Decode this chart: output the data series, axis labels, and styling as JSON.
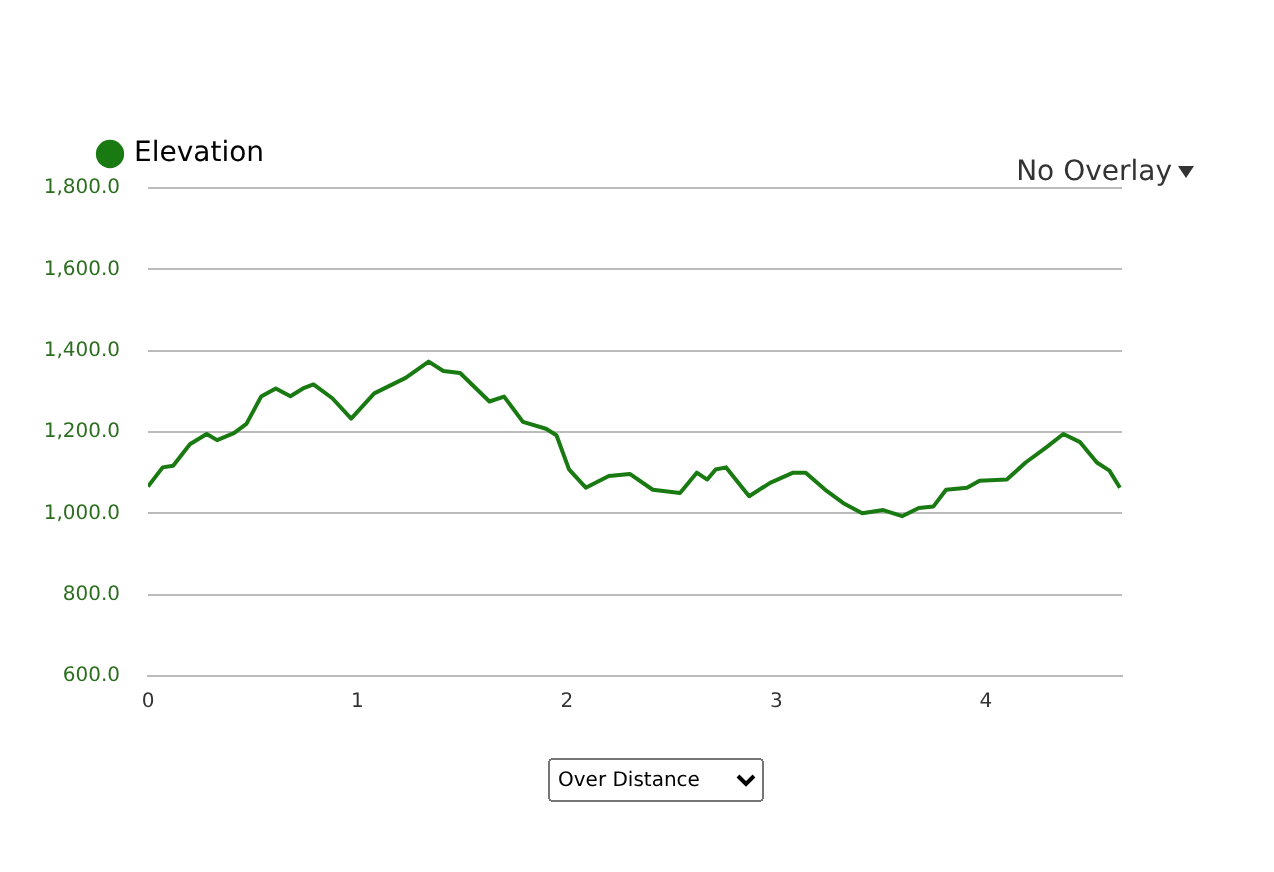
{
  "chart_data": {
    "type": "line",
    "annotations": [
      "No Overlay",
      "Over Distance"
    ],
    "x": [
      0,
      0.07,
      0.12,
      0.2,
      0.28,
      0.33,
      0.41,
      0.47,
      0.54,
      0.61,
      0.68,
      0.74,
      0.79,
      0.88,
      0.97,
      1.08,
      1.23,
      1.34,
      1.41,
      1.49,
      1.63,
      1.7,
      1.79,
      1.9,
      1.95,
      2.01,
      2.09,
      2.2,
      2.3,
      2.41,
      2.54,
      2.62,
      2.67,
      2.71,
      2.76,
      2.87,
      2.97,
      3.08,
      3.14,
      3.24,
      3.32,
      3.41,
      3.51,
      3.6,
      3.68,
      3.75,
      3.81,
      3.91,
      3.97,
      4.1,
      4.19,
      4.29,
      4.37,
      4.45,
      4.53,
      4.59,
      4.64
    ],
    "series": [
      {
        "name": "Elevation",
        "color": "#1a7a12",
        "values": [
          1066,
          1113,
          1117,
          1170,
          1195,
          1180,
          1197,
          1220,
          1287,
          1307,
          1288,
          1307,
          1317,
          1283,
          1233,
          1295,
          1333,
          1373,
          1350,
          1345,
          1275,
          1287,
          1225,
          1208,
          1192,
          1108,
          1063,
          1092,
          1097,
          1058,
          1050,
          1100,
          1083,
          1108,
          1113,
          1042,
          1075,
          1100,
          1100,
          1055,
          1025,
          1000,
          1008,
          993,
          1013,
          1017,
          1058,
          1063,
          1080,
          1083,
          1125,
          1163,
          1195,
          1175,
          1125,
          1105,
          1063
        ]
      }
    ],
    "xlim": [
      0,
      4.65
    ],
    "xticks": [
      0,
      1,
      2,
      3,
      4
    ],
    "ylim": [
      600,
      1800
    ],
    "yticks": [
      {
        "value": 600,
        "label": "600.0"
      },
      {
        "value": 800,
        "label": "800.0"
      },
      {
        "value": 1000,
        "label": "1,000.0"
      },
      {
        "value": 1200,
        "label": "1,200.0"
      },
      {
        "value": 1400,
        "label": "1,400.0"
      },
      {
        "value": 1600,
        "label": "1,600.0"
      },
      {
        "value": 1800,
        "label": "1,800.0"
      }
    ],
    "grid": "y",
    "legend": "top left",
    "marker": "none",
    "line_style": "solid"
  }
}
